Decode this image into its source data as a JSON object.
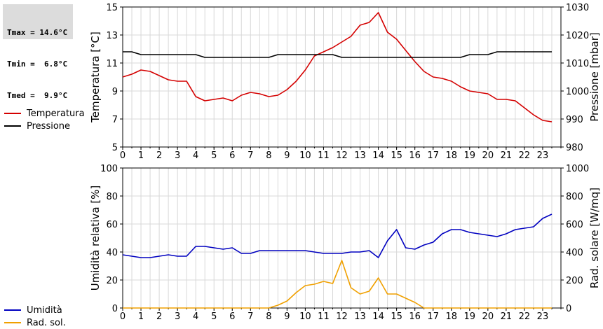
{
  "stats": {
    "lines": [
      "Tmax = 14.6°C",
      "Tmin =  6.8°C",
      "Tmed =  9.9°C"
    ]
  },
  "colors": {
    "temperature": "#d40000",
    "pressure": "#000000",
    "humidity": "#0000c0",
    "radiation": "#f0a000",
    "grid": "#d8d8d8"
  },
  "chart_data": [
    {
      "type": "line",
      "x_ticks": [
        "0",
        "1",
        "2",
        "3",
        "4",
        "5",
        "6",
        "7",
        "8",
        "9",
        "10",
        "11",
        "12",
        "13",
        "14",
        "15",
        "16",
        "17",
        "18",
        "19",
        "20",
        "21",
        "22",
        "23"
      ],
      "xlim": [
        0,
        24
      ],
      "ylabel_left": "Temperatura [°C]",
      "ylabel_right": "Pressione [mbar]",
      "ylim_left": [
        5,
        15
      ],
      "ylim_right": [
        980,
        1030
      ],
      "yticks_left": [
        "5",
        "7",
        "9",
        "11",
        "13",
        "15"
      ],
      "yticks_right": [
        "980",
        "990",
        "1000",
        "1010",
        "1020",
        "1030"
      ],
      "grid": true,
      "legend": [
        "Temperatura",
        "Pressione"
      ],
      "series": [
        {
          "name": "Temperatura",
          "axis": "left",
          "x": [
            0,
            0.5,
            1,
            1.5,
            2,
            2.5,
            3,
            3.5,
            4,
            4.5,
            5,
            5.5,
            6,
            6.5,
            7,
            7.5,
            8,
            8.5,
            9,
            9.5,
            10,
            10.5,
            11,
            11.5,
            12,
            12.5,
            13,
            13.5,
            14,
            14.5,
            15,
            15.5,
            16,
            16.5,
            17,
            17.5,
            18,
            18.5,
            19,
            19.5,
            20,
            20.5,
            21,
            21.5,
            22,
            22.5,
            23,
            23.5
          ],
          "values": [
            10.0,
            10.2,
            10.5,
            10.4,
            10.1,
            9.8,
            9.7,
            9.7,
            8.6,
            8.3,
            8.4,
            8.5,
            8.3,
            8.7,
            8.9,
            8.8,
            8.6,
            8.7,
            9.1,
            9.7,
            10.5,
            11.5,
            11.8,
            12.1,
            12.5,
            12.9,
            13.7,
            13.9,
            14.6,
            13.2,
            12.7,
            11.9,
            11.1,
            10.4,
            10.0,
            9.9,
            9.7,
            9.3,
            9.0,
            8.9,
            8.8,
            8.4,
            8.4,
            8.3,
            7.8,
            7.3,
            6.9,
            6.8
          ]
        },
        {
          "name": "Pressione",
          "axis": "right",
          "x": [
            0,
            0.5,
            1,
            1.5,
            2,
            2.5,
            3,
            3.5,
            4,
            4.5,
            5,
            5.5,
            6,
            6.5,
            7,
            7.5,
            8,
            8.5,
            9,
            9.5,
            10,
            10.5,
            11,
            11.5,
            12,
            12.5,
            13,
            13.5,
            14,
            14.5,
            15,
            15.5,
            16,
            16.5,
            17,
            17.5,
            18,
            18.5,
            19,
            19.5,
            20,
            20.5,
            21,
            21.5,
            22,
            22.5,
            23,
            23.5
          ],
          "values": [
            1014,
            1014,
            1013,
            1013,
            1013,
            1013,
            1013,
            1013,
            1013,
            1012,
            1012,
            1012,
            1012,
            1012,
            1012,
            1012,
            1012,
            1013,
            1013,
            1013,
            1013,
            1013,
            1013,
            1013,
            1012,
            1012,
            1012,
            1012,
            1012,
            1012,
            1012,
            1012,
            1012,
            1012,
            1012,
            1012,
            1012,
            1012,
            1013,
            1013,
            1013,
            1014,
            1014,
            1014,
            1014,
            1014,
            1014,
            1014
          ]
        }
      ]
    },
    {
      "type": "line",
      "x_ticks": [
        "0",
        "1",
        "2",
        "3",
        "4",
        "5",
        "6",
        "7",
        "8",
        "9",
        "10",
        "11",
        "12",
        "13",
        "14",
        "15",
        "16",
        "17",
        "18",
        "19",
        "20",
        "21",
        "22",
        "23"
      ],
      "xlim": [
        0,
        24
      ],
      "ylabel_left": "Umidità relativa [%]",
      "ylabel_right": "Rad. solare [W/mq]",
      "ylim_left": [
        0,
        100
      ],
      "ylim_right": [
        0,
        1000
      ],
      "yticks_left": [
        "0",
        "20",
        "40",
        "60",
        "80",
        "100"
      ],
      "yticks_right": [
        "0",
        "200",
        "400",
        "600",
        "800",
        "1000"
      ],
      "grid": true,
      "legend": [
        "Umidità",
        "Rad. sol."
      ],
      "series": [
        {
          "name": "Umidità",
          "axis": "left",
          "x": [
            0,
            0.5,
            1,
            1.5,
            2,
            2.5,
            3,
            3.5,
            4,
            4.5,
            5,
            5.5,
            6,
            6.5,
            7,
            7.5,
            8,
            8.5,
            9,
            9.5,
            10,
            10.5,
            11,
            11.5,
            12,
            12.5,
            13,
            13.5,
            14,
            14.5,
            15,
            15.5,
            16,
            16.5,
            17,
            17.5,
            18,
            18.5,
            19,
            19.5,
            20,
            20.5,
            21,
            21.5,
            22,
            22.5,
            23,
            23.5
          ],
          "values": [
            38,
            37,
            36,
            36,
            37,
            38,
            37,
            37,
            44,
            44,
            43,
            42,
            43,
            39,
            39,
            41,
            41,
            41,
            41,
            41,
            41,
            40,
            39,
            39,
            39,
            40,
            40,
            41,
            36,
            48,
            56,
            43,
            42,
            45,
            47,
            53,
            56,
            56,
            54,
            53,
            52,
            51,
            53,
            56,
            57,
            58,
            64,
            67
          ]
        },
        {
          "name": "Rad. sol.",
          "axis": "right",
          "x": [
            0,
            0.5,
            1,
            1.5,
            2,
            2.5,
            3,
            3.5,
            4,
            4.5,
            5,
            5.5,
            6,
            6.5,
            7,
            7.5,
            8,
            8.5,
            9,
            9.5,
            10,
            10.5,
            11,
            11.5,
            12,
            12.5,
            13,
            13.5,
            14,
            14.5,
            15,
            15.5,
            16,
            16.5,
            17,
            17.5,
            18,
            18.5,
            19,
            19.5,
            20,
            20.5,
            21,
            21.5,
            22,
            22.5,
            23,
            23.5
          ],
          "values": [
            0,
            0,
            0,
            0,
            0,
            0,
            0,
            0,
            0,
            0,
            0,
            0,
            0,
            0,
            0,
            0,
            0,
            20,
            50,
            110,
            160,
            170,
            190,
            175,
            340,
            145,
            100,
            120,
            215,
            100,
            100,
            70,
            40,
            0,
            0,
            0,
            0,
            0,
            0,
            0,
            0,
            0,
            0,
            0,
            0,
            0,
            0,
            0
          ]
        }
      ]
    }
  ]
}
